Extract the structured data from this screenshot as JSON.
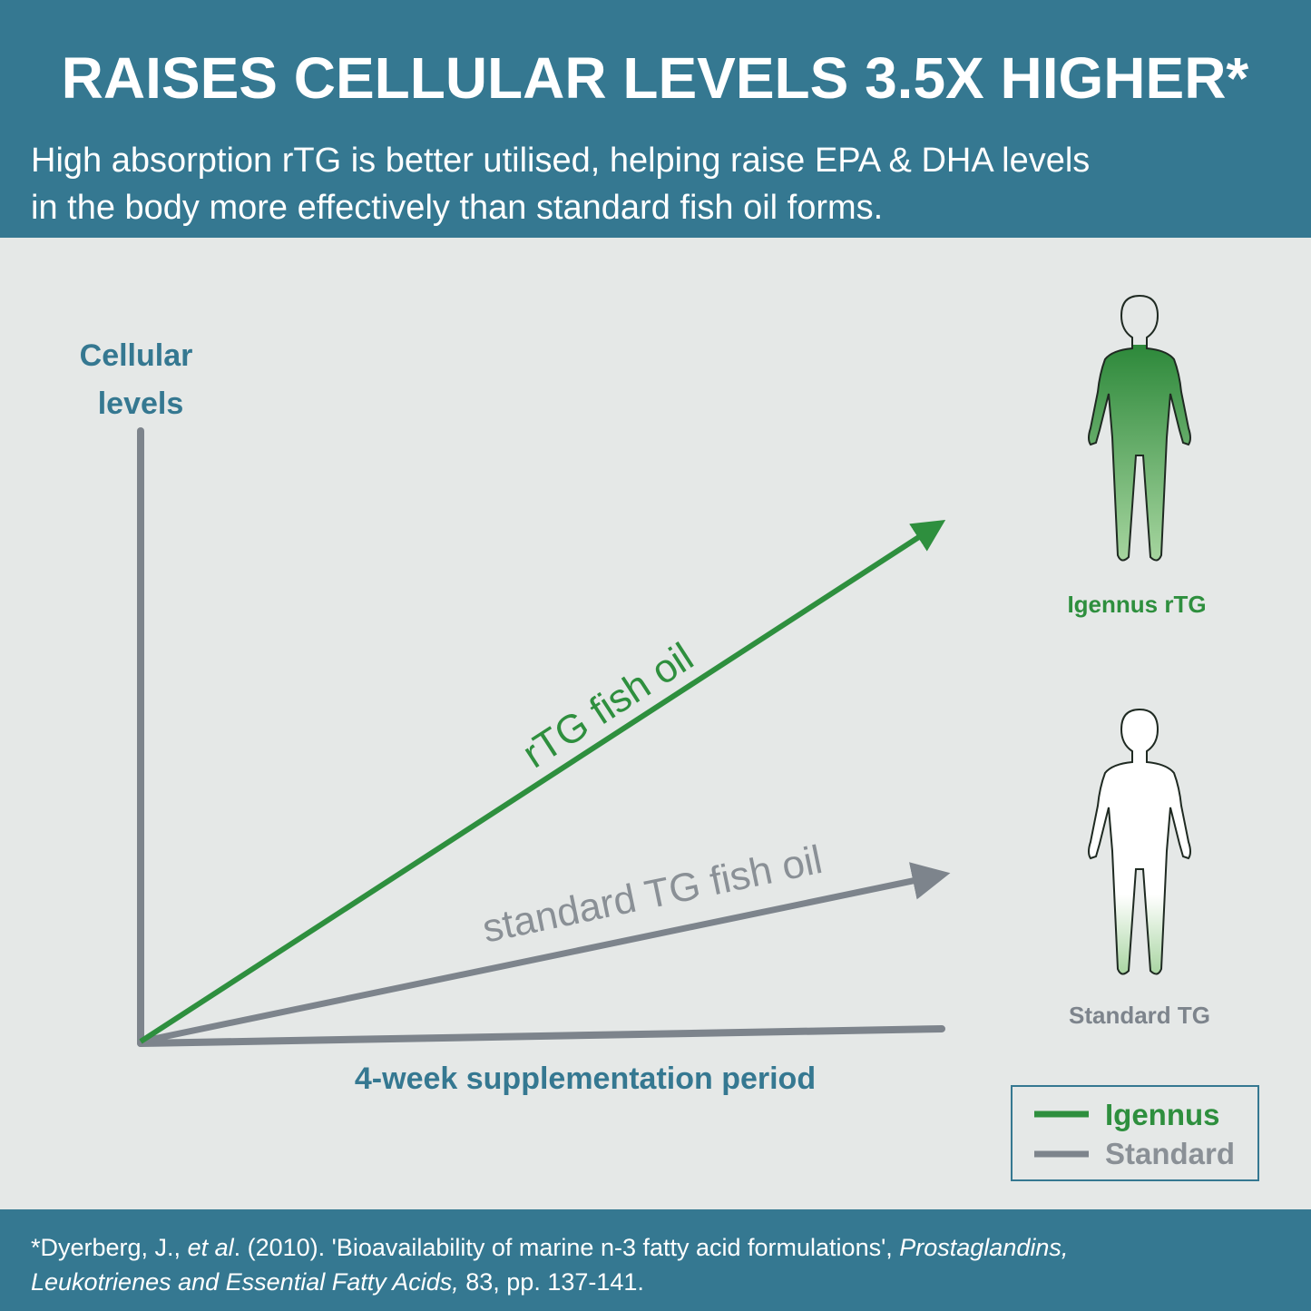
{
  "header": {
    "title": "RAISES CELLULAR LEVELS 3.5X HIGHER*",
    "subtitle": [
      "High absorption rTG is better utilised, helping raise EPA & DHA levels",
      "in the body more effectively than standard fish oil forms."
    ]
  },
  "diagram": {
    "y_axis_label": [
      "Cellular",
      "levels"
    ],
    "x_axis_label": "4-week supplementation period",
    "lines": [
      {
        "label": "rTG fish oil"
      },
      {
        "label": "standard TG fish oil"
      }
    ],
    "figures": [
      {
        "label": "Igennus rTG"
      },
      {
        "label": "Standard TG"
      }
    ],
    "legend": [
      "Igennus",
      "Standard"
    ]
  },
  "footnote": [
    [
      "*Dyerberg, J., ",
      "et al",
      ". (2010). 'Bioavailability of marine n-3 fatty acid formulations', ",
      "Prostaglandins,"
    ],
    [
      "Leukotrienes and Essential Fatty Acids,",
      " 83, pp. 137-141."
    ]
  ]
}
